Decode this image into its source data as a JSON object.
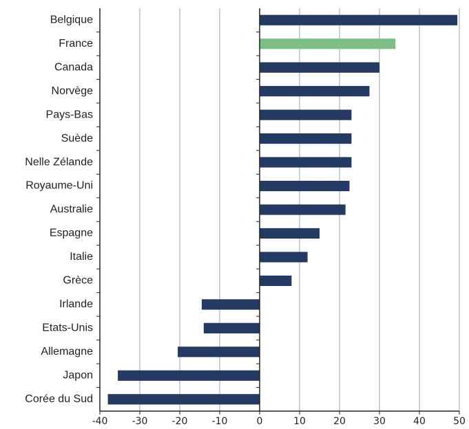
{
  "chart_data": {
    "type": "barh",
    "categories": [
      "Belgique",
      "France",
      "Canada",
      "Norvège",
      "Pays-Bas",
      "Suède",
      "Nelle Zélande",
      "Royaume-Uni",
      "Australie",
      "Espagne",
      "Italie",
      "Grèce",
      "Irlande",
      "Etats-Unis",
      "Allemagne",
      "Japon",
      "Corée du Sud"
    ],
    "values": [
      49.5,
      34,
      30,
      27.5,
      23,
      23,
      23,
      22.5,
      21.5,
      15,
      12,
      8,
      -14.5,
      -14,
      -20.5,
      -35.5,
      -38
    ],
    "colors": [
      "#253a63",
      "#7dbf86",
      "#253a63",
      "#253a63",
      "#253a63",
      "#253a63",
      "#253a63",
      "#253a63",
      "#253a63",
      "#253a63",
      "#253a63",
      "#253a63",
      "#253a63",
      "#253a63",
      "#253a63",
      "#253a63",
      "#253a63"
    ],
    "xlim": [
      -40,
      50
    ],
    "xticks": [
      -40,
      -30,
      -20,
      -10,
      0,
      10,
      20,
      30,
      40,
      50
    ],
    "grid": true
  }
}
